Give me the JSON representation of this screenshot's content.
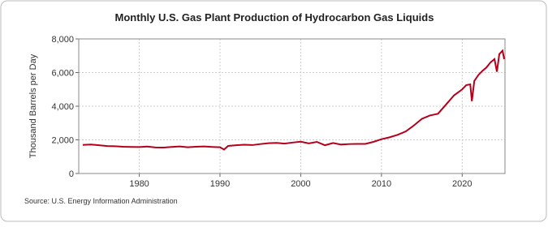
{
  "chart_data": {
    "type": "line",
    "title": "Monthly U.S. Gas Plant Production of Hydrocarbon Gas Liquids",
    "y_label": "Thousand Barrels per Day",
    "source": "Source: U.S. Energy Information Administration",
    "x": [
      1973,
      1974,
      1975,
      1976,
      1977,
      1978,
      1979,
      1980,
      1981,
      1982,
      1983,
      1984,
      1985,
      1986,
      1987,
      1988,
      1989,
      1990,
      1990.5,
      1991,
      1992,
      1993,
      1994,
      1995,
      1996,
      1997,
      1998,
      1999,
      2000,
      2001,
      2002,
      2003,
      2004,
      2005,
      2006,
      2007,
      2008,
      2009,
      2010,
      2011,
      2012,
      2013,
      2014,
      2015,
      2016,
      2017,
      2018,
      2019,
      2020,
      2020.5,
      2021,
      2021.2,
      2021.5,
      2022,
      2022.5,
      2023,
      2023.5,
      2024,
      2024.3,
      2024.6,
      2025,
      2025.2
    ],
    "series": [
      {
        "name": "Monthly U.S. Gas Plant Production of Hydrocarbon Gas Liquids",
        "color": "#b5001b",
        "values": [
          1700,
          1720,
          1680,
          1630,
          1620,
          1590,
          1580,
          1570,
          1600,
          1550,
          1540,
          1580,
          1610,
          1560,
          1590,
          1610,
          1580,
          1560,
          1420,
          1640,
          1680,
          1710,
          1690,
          1750,
          1800,
          1820,
          1780,
          1840,
          1890,
          1790,
          1880,
          1680,
          1810,
          1720,
          1750,
          1760,
          1760,
          1880,
          2040,
          2150,
          2300,
          2500,
          2850,
          3250,
          3450,
          3550,
          4100,
          4650,
          5000,
          5250,
          5300,
          4300,
          5500,
          5850,
          6100,
          6300,
          6600,
          6800,
          6050,
          7100,
          7300,
          6800
        ]
      }
    ],
    "xlim": [
      1972.5,
      2025.3
    ],
    "xticks": [
      1980,
      1990,
      2000,
      2010,
      2020
    ],
    "ylim": [
      0,
      8000
    ],
    "yticks": [
      0,
      {
        "value": 2000,
        "label": "2,000"
      },
      {
        "value": 4000,
        "label": "4,000"
      },
      {
        "value": 6000,
        "label": "6,000"
      },
      {
        "value": 8000,
        "label": "8,000"
      }
    ],
    "grid": true
  }
}
